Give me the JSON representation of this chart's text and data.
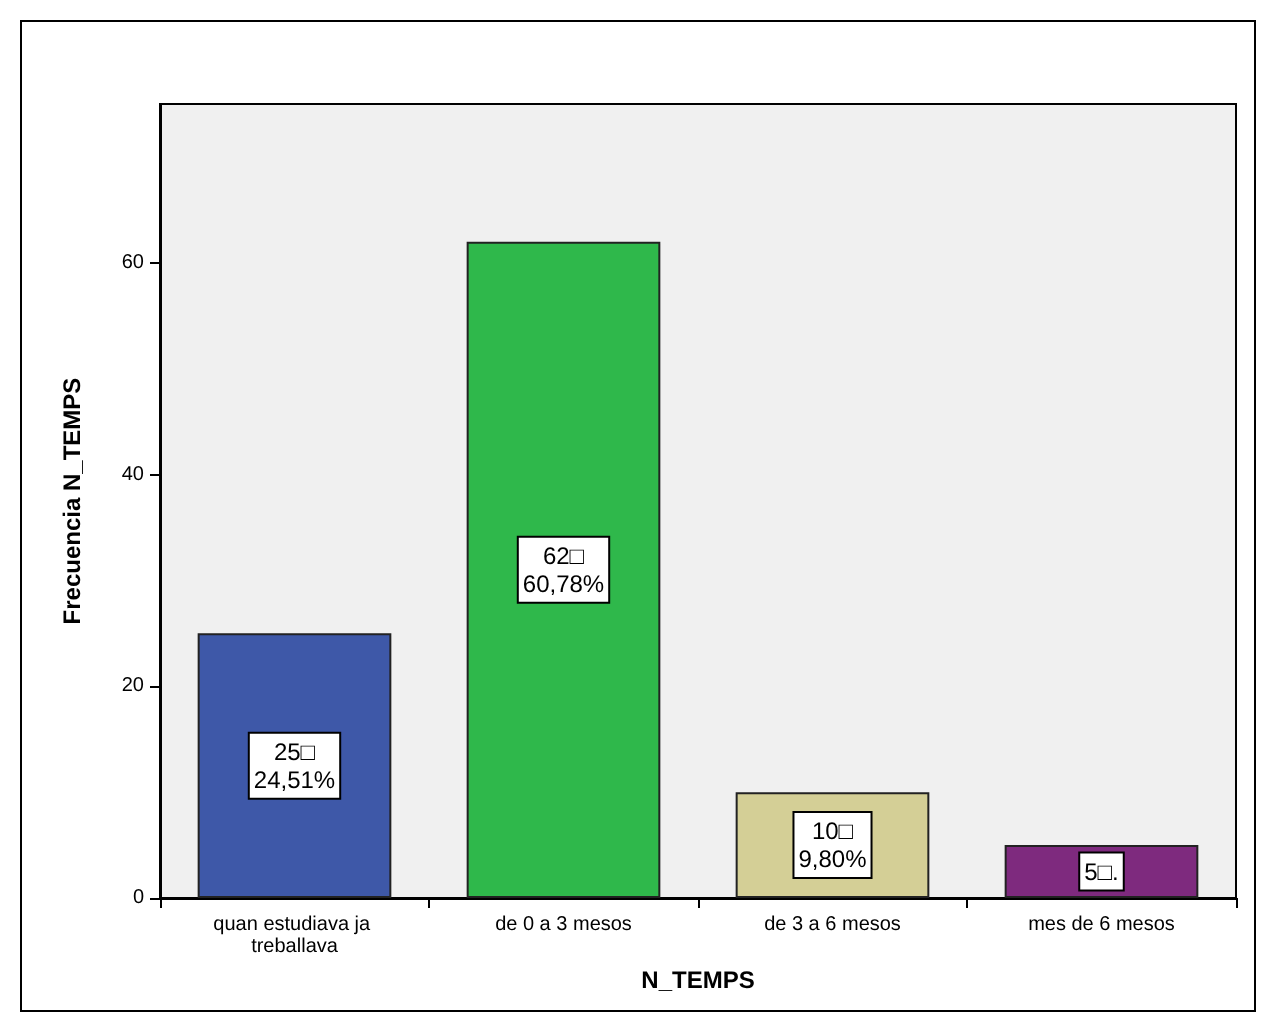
{
  "chart_data": {
    "type": "bar",
    "xlabel": "N_TEMPS",
    "ylabel": "Frecuencia N_TEMPS",
    "categories": [
      "quan estudiava ja treballava",
      "de 0 a 3 mesos",
      "de 3 a 6 mesos",
      "mes de 6 mesos"
    ],
    "values": [
      25,
      62,
      10,
      5
    ],
    "colors": [
      "#3e58a8",
      "#2fb84b",
      "#d4cf96",
      "#7e2a7e"
    ],
    "value_labels": [
      "25□\n24,51%",
      "62□\n60,78%",
      "10□\n9,80%",
      "5□."
    ],
    "ylim": [
      0,
      75
    ],
    "yticks": [
      0,
      20,
      40,
      60
    ]
  }
}
